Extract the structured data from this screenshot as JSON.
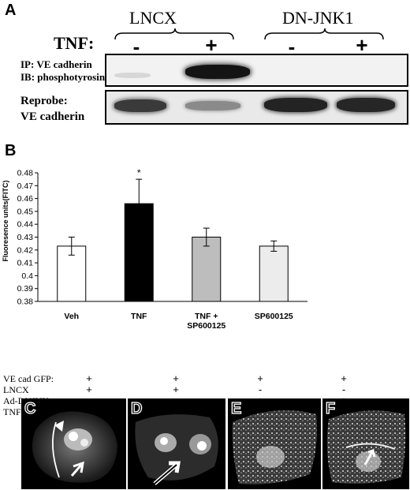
{
  "panel_a": {
    "letter": "A",
    "groups": [
      "LNCX",
      "DN-JNK1"
    ],
    "tnf_label": "TNF:",
    "lane_signs": [
      "-",
      "+",
      "-",
      "+"
    ],
    "ip_label": "IP: VE cadherin",
    "ib_label": "IB: phosphotyrosine",
    "reprobe_line1": "Reprobe:",
    "reprobe_line2": "VE cadherin"
  },
  "panel_b": {
    "letter": "B",
    "significance_marker": "*"
  },
  "chart_data": {
    "type": "bar",
    "categories": [
      "Veh",
      "TNF",
      "TNF + SP600125",
      "SP600125"
    ],
    "category_lines": [
      [
        "Veh"
      ],
      [
        "TNF"
      ],
      [
        "TNF +",
        "SP600125"
      ],
      [
        "SP600125"
      ]
    ],
    "values": [
      0.423,
      0.456,
      0.43,
      0.423
    ],
    "errors": [
      0.007,
      0.019,
      0.007,
      0.004
    ],
    "fills": [
      "#ffffff",
      "#000000",
      "#bdbdbd",
      "#ececec"
    ],
    "ylabel": "Fluoresence units(FITC)",
    "ylim": [
      0.38,
      0.48
    ],
    "yticks": [
      "0.38",
      "0.39",
      "0.4",
      "0.41",
      "0.42",
      "0.43",
      "0.44",
      "0.45",
      "0.46",
      "0.47",
      "0.48"
    ],
    "grid": false,
    "legend": "none",
    "annotation": {
      "category": "TNF",
      "text": "*"
    }
  },
  "conditions": {
    "labels": [
      "VE cad GFP:",
      "LNCX",
      "Ad-DNJNK:",
      "TNF:"
    ],
    "rows": [
      [
        "+",
        "+",
        "+",
        "+"
      ],
      [
        "+",
        "+",
        "-",
        "-"
      ],
      [
        "-",
        "-",
        "+",
        "+"
      ],
      [
        "-",
        "+",
        "-",
        "+"
      ]
    ]
  },
  "micrographs": [
    "C",
    "D",
    "E",
    "F"
  ]
}
